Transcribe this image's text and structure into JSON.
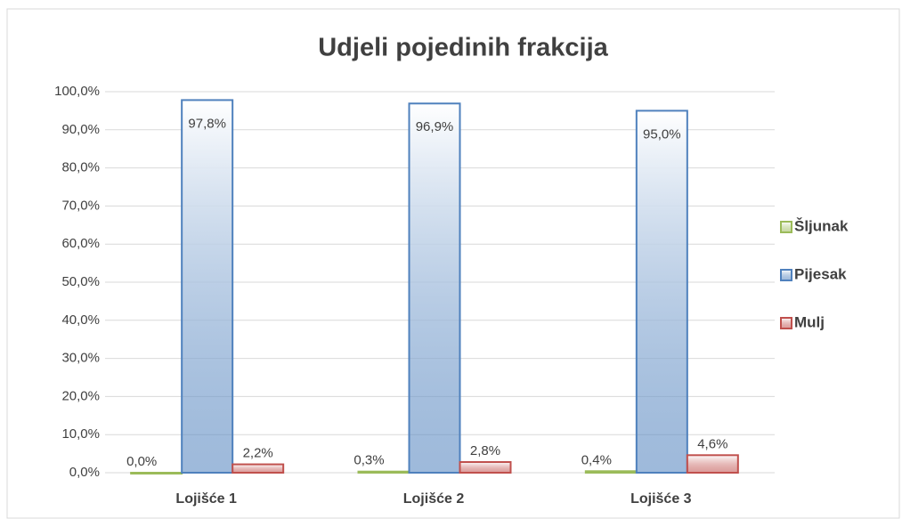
{
  "chart_data": {
    "type": "bar",
    "title": "Udjeli pojedinih frakcija",
    "categories": [
      "Lojišće 1",
      "Lojišće 2",
      "Lojišće 3"
    ],
    "series": [
      {
        "name": "Šljunak",
        "color": "#9bbb59",
        "values": [
          0.0,
          0.3,
          0.4
        ],
        "value_labels": [
          "0,0%",
          "0,3%",
          "0,4%"
        ]
      },
      {
        "name": "Pijesak",
        "color": "#4f81bd",
        "values": [
          97.8,
          96.9,
          95.0
        ],
        "value_labels": [
          "97,8%",
          "96,9%",
          "95,0%"
        ]
      },
      {
        "name": "Mulj",
        "color": "#c0504d",
        "values": [
          2.2,
          2.8,
          4.6
        ],
        "value_labels": [
          "2,2%",
          "2,8%",
          "4,6%"
        ]
      }
    ],
    "ylim": [
      0,
      100
    ],
    "yticks": [
      {
        "value": 0,
        "label": "0,0%"
      },
      {
        "value": 10,
        "label": "10,0%"
      },
      {
        "value": 20,
        "label": "20,0%"
      },
      {
        "value": 30,
        "label": "30,0%"
      },
      {
        "value": 40,
        "label": "40,0%"
      },
      {
        "value": 50,
        "label": "50,0%"
      },
      {
        "value": 60,
        "label": "60,0%"
      },
      {
        "value": 70,
        "label": "70,0%"
      },
      {
        "value": 80,
        "label": "80,0%"
      },
      {
        "value": 90,
        "label": "90,0%"
      },
      {
        "value": 100,
        "label": "100,0%"
      }
    ],
    "grid": true,
    "legend": "right"
  }
}
